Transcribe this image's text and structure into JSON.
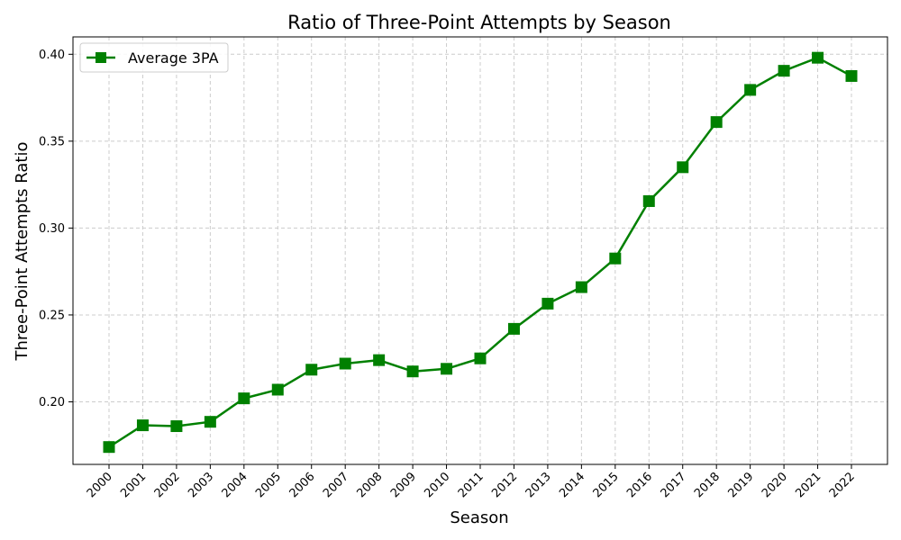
{
  "chart_data": {
    "type": "line",
    "title": "Ratio of Three-Point Attempts by Season",
    "xlabel": "Season",
    "ylabel": "Three-Point Attempts Ratio",
    "categories": [
      "2000",
      "2001",
      "2002",
      "2003",
      "2004",
      "2005",
      "2006",
      "2007",
      "2008",
      "2009",
      "2010",
      "2011",
      "2012",
      "2013",
      "2014",
      "2015",
      "2016",
      "2017",
      "2018",
      "2019",
      "2020",
      "2021",
      "2022"
    ],
    "series": [
      {
        "name": "Average 3PA",
        "color": "#008000",
        "marker": "square",
        "values": [
          0.174,
          0.1865,
          0.186,
          0.1885,
          0.202,
          0.207,
          0.2185,
          0.222,
          0.224,
          0.2175,
          0.219,
          0.225,
          0.242,
          0.2565,
          0.266,
          0.2825,
          0.3155,
          0.335,
          0.361,
          0.3795,
          0.3905,
          0.398,
          0.3875
        ]
      }
    ],
    "ylim": [
      0.164,
      0.41
    ],
    "yticks": [
      "0.20",
      "0.25",
      "0.30",
      "0.35",
      "0.40"
    ],
    "grid": true,
    "legend_position": "top-left"
  }
}
